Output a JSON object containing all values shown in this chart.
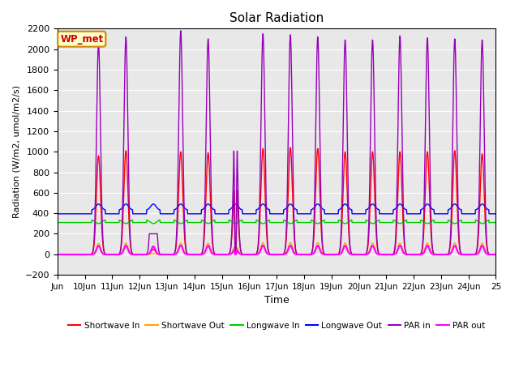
{
  "title": "Solar Radiation",
  "xlabel": "Time",
  "ylabel": "Radiation (W/m2, umol/m2/s)",
  "ylim": [
    -200,
    2200
  ],
  "yticks": [
    -200,
    0,
    200,
    400,
    600,
    800,
    1000,
    1200,
    1400,
    1600,
    1800,
    2000,
    2200
  ],
  "xlim_start": 9.0,
  "xlim_end": 25.0,
  "xtick_positions": [
    9,
    10,
    11,
    12,
    13,
    14,
    15,
    16,
    17,
    18,
    19,
    20,
    21,
    22,
    23,
    24,
    25
  ],
  "xtick_labels": [
    "Jun",
    "10Jun",
    "11Jun",
    "12Jun",
    "13Jun",
    "14Jun",
    "15Jun",
    "16Jun",
    "17Jun",
    "18Jun",
    "19Jun",
    "20Jun",
    "21Jun",
    "22Jun",
    "23Jun",
    "24Jun",
    "25"
  ],
  "colors": {
    "shortwave_in": "#ff0000",
    "shortwave_out": "#ffa500",
    "longwave_in": "#00cc00",
    "longwave_out": "#0000ff",
    "par_in": "#9900bb",
    "par_out": "#ff00ff"
  },
  "legend_labels": [
    "Shortwave In",
    "Shortwave Out",
    "Longwave In",
    "Longwave Out",
    "PAR in",
    "PAR out"
  ],
  "annotation_text": "WP_met",
  "bg_color": "#e8e8e8",
  "grid_color": "#ffffff",
  "title_fontsize": 11
}
